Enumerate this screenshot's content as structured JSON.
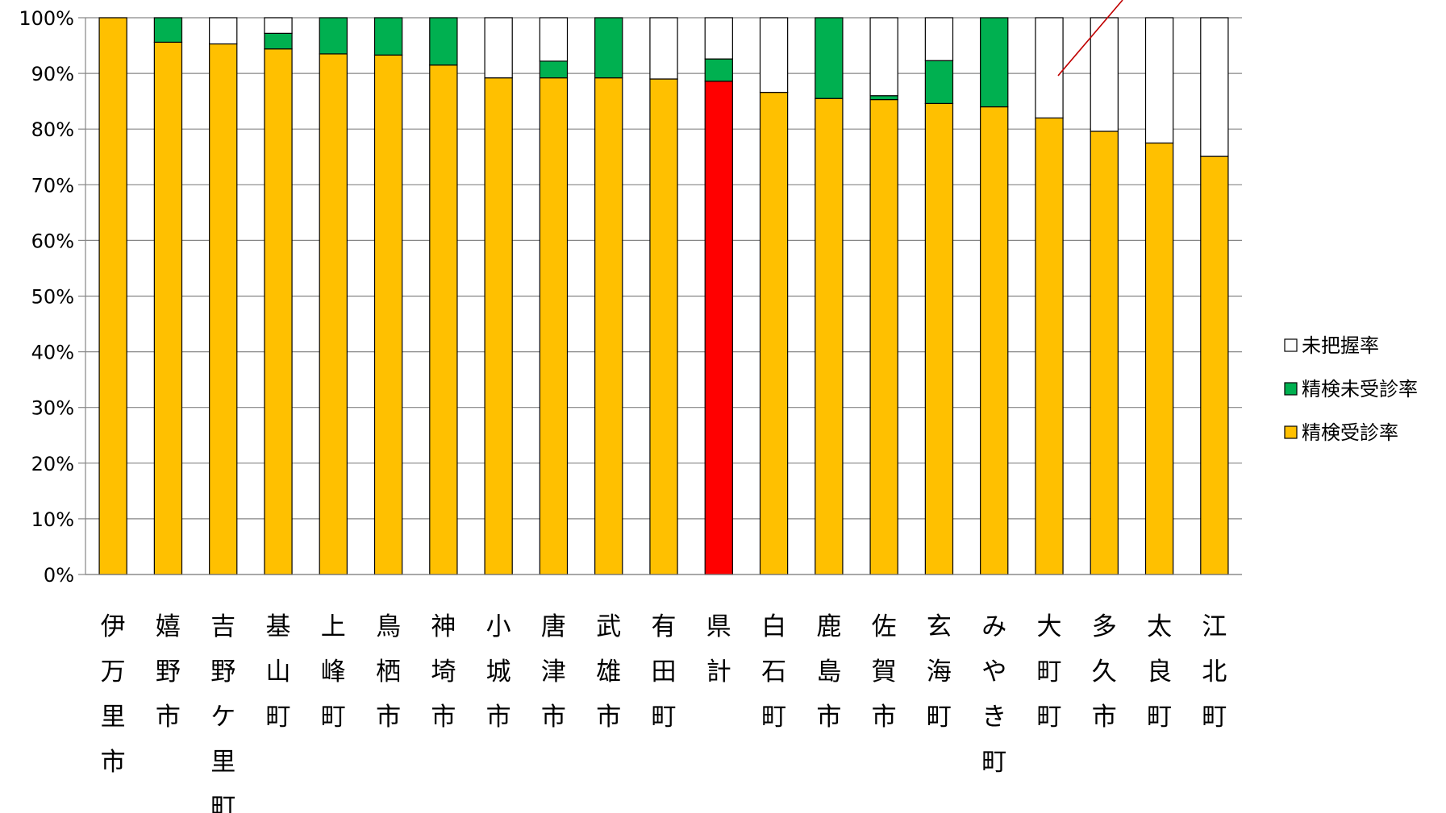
{
  "chart_data": {
    "type": "bar",
    "stacked": true,
    "categories": [
      "伊万里市",
      "嬉野市",
      "吉野ケ里町",
      "基山町",
      "上峰町",
      "鳥栖市",
      "神埼市",
      "小城市",
      "唐津市",
      "武雄市",
      "有田町",
      "県計",
      "白石町",
      "鹿島市",
      "佐賀市",
      "玄海町",
      "みやき町",
      "大町町",
      "多久市",
      "太良町",
      "江北町"
    ],
    "series": [
      {
        "name": "精検受診率",
        "color": "#FFC000",
        "highlight_color": "#FF0000",
        "highlight_category": "県計",
        "values": [
          100,
          95.6,
          95.3,
          94.4,
          93.5,
          93.3,
          91.5,
          89.2,
          89.2,
          89.2,
          89.0,
          88.6,
          86.6,
          85.5,
          85.3,
          84.6,
          84.0,
          82.0,
          79.6,
          77.5,
          75.1
        ]
      },
      {
        "name": "精検未受診率",
        "color": "#00B050",
        "values": [
          0,
          4.4,
          0,
          2.8,
          6.5,
          6.7,
          8.5,
          0,
          3.0,
          10.8,
          0,
          4.0,
          0,
          14.5,
          0.7,
          7.7,
          16.0,
          0,
          0,
          0,
          0
        ]
      },
      {
        "name": "未把握率",
        "color": "#FFFFFF",
        "values": [
          0,
          0,
          4.7,
          2.8,
          0,
          0,
          0,
          10.8,
          7.8,
          0,
          11.0,
          7.4,
          13.4,
          0,
          14.0,
          7.7,
          0,
          18.0,
          20.4,
          22.5,
          24.9
        ]
      }
    ],
    "yticks": [
      "0%",
      "10%",
      "20%",
      "30%",
      "40%",
      "50%",
      "60%",
      "70%",
      "80%",
      "90%",
      "100%"
    ],
    "ylim": [
      0,
      100
    ],
    "reference_line": {
      "value": 89.3,
      "color": "#C00000",
      "style": "dashed"
    },
    "legend": {
      "placement": "right",
      "order": [
        "未把握率",
        "精検未受診率",
        "精検受診率"
      ]
    },
    "grid": true,
    "axis_color": "#868686"
  }
}
